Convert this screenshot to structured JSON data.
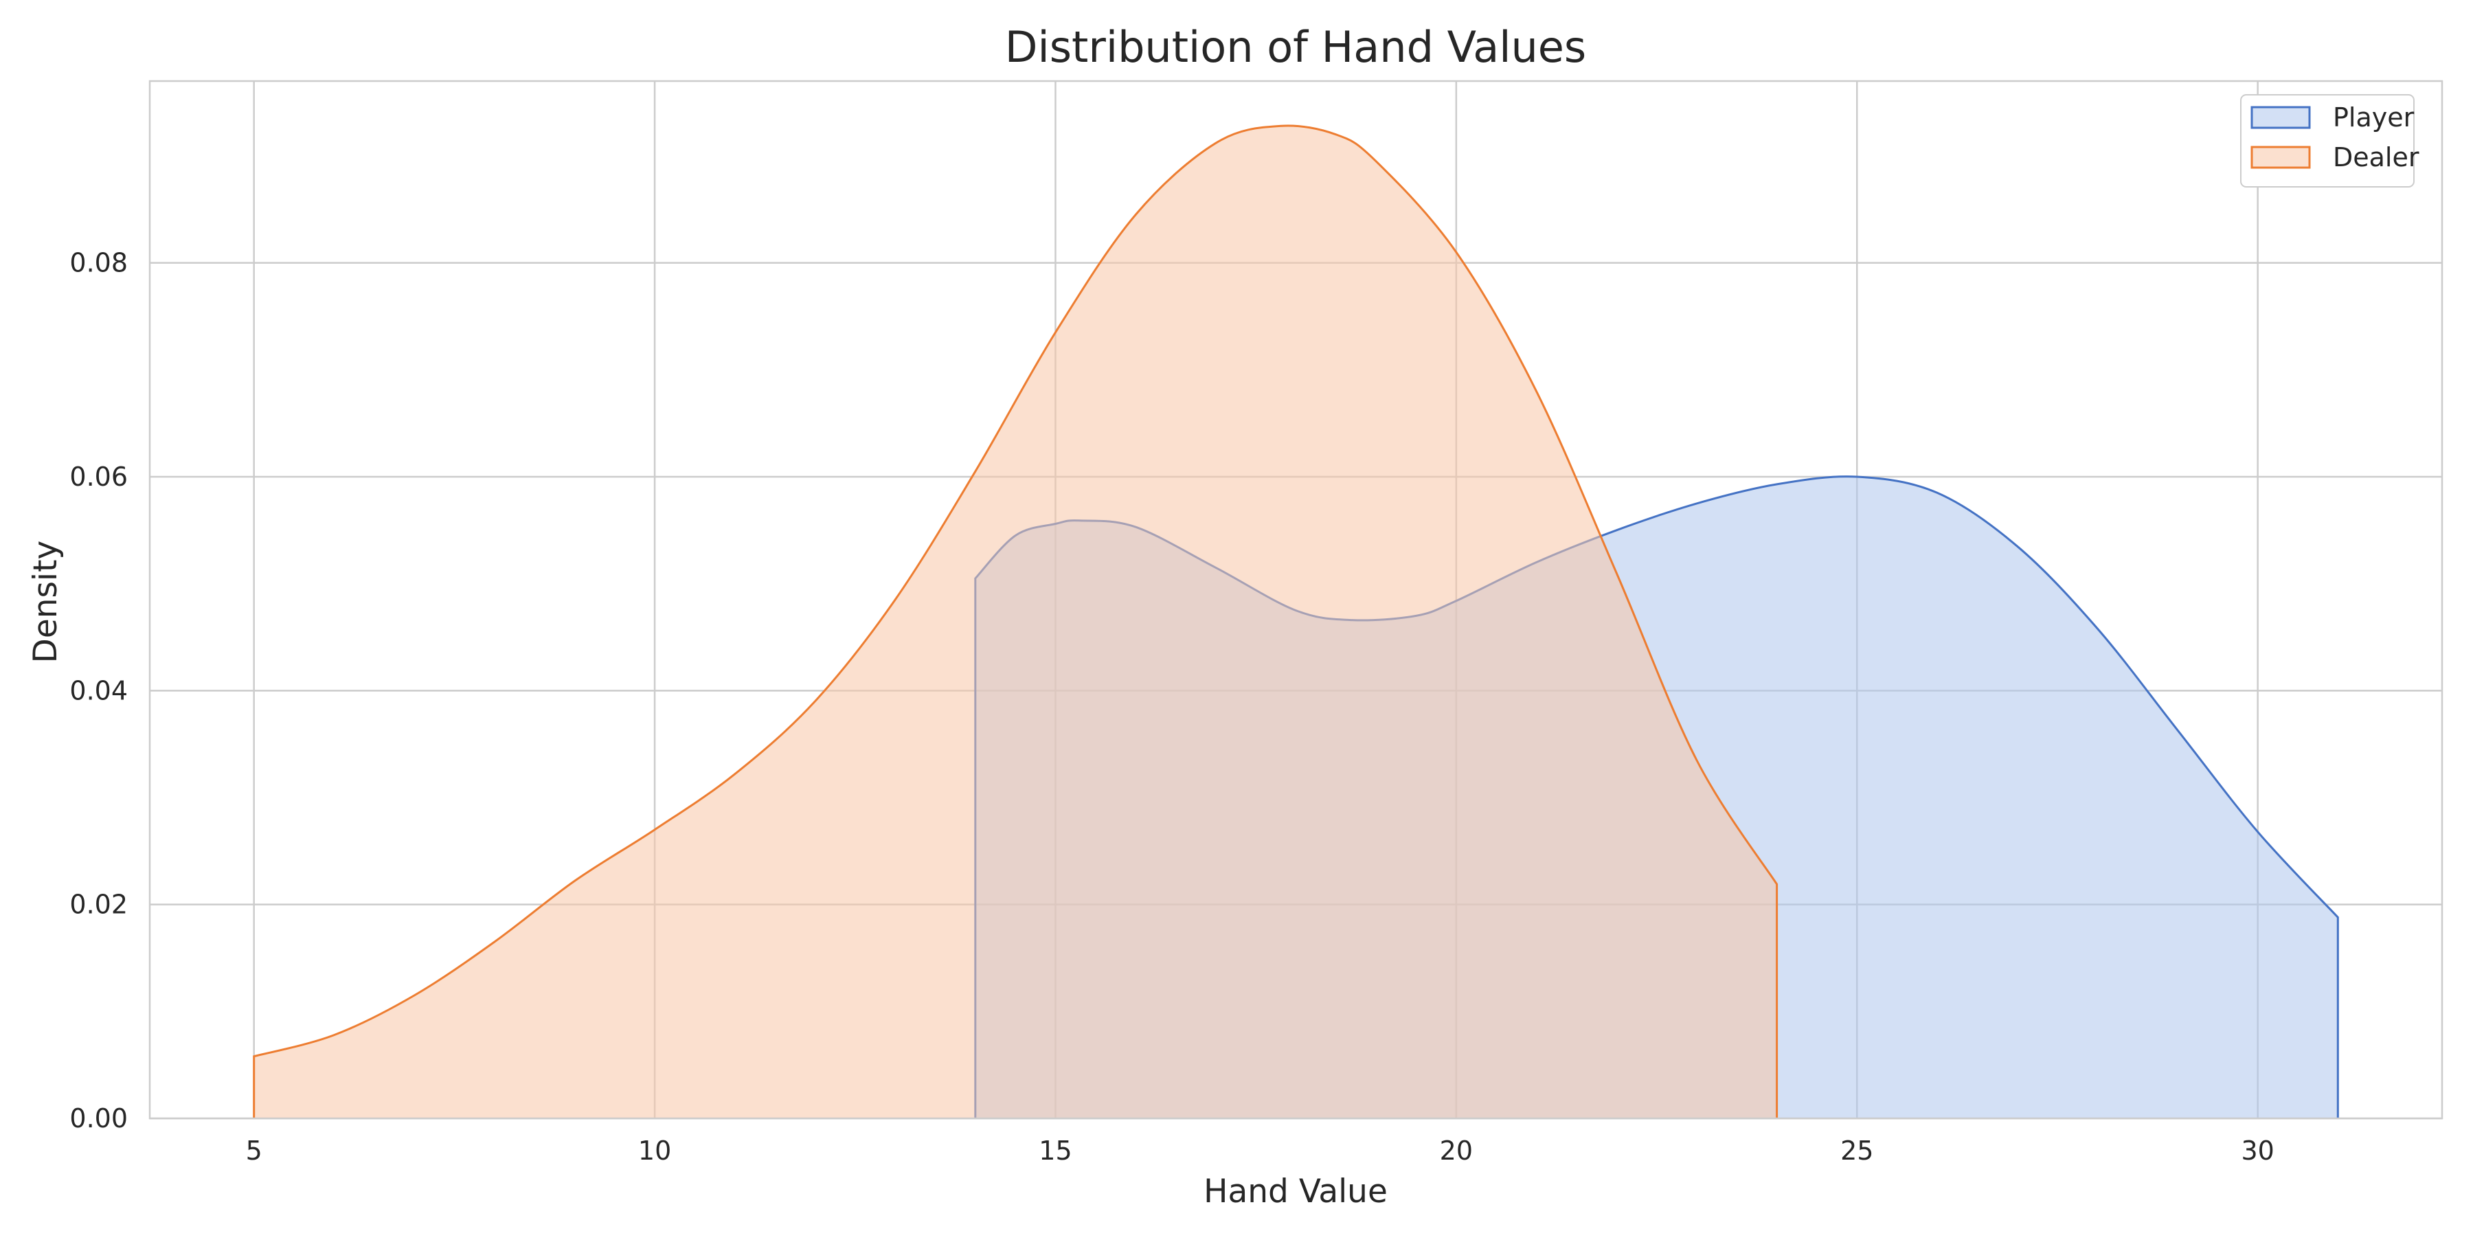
{
  "chart_data": {
    "type": "area",
    "title": "Distribution of Hand Values",
    "xlabel": "Hand Value",
    "ylabel": "Density",
    "xlim": [
      3.7,
      32.3
    ],
    "ylim": [
      0,
      0.097
    ],
    "xticks": [
      5,
      10,
      15,
      20,
      25,
      30
    ],
    "yticks": [
      0.0,
      0.02,
      0.04,
      0.06,
      0.08
    ],
    "xtick_labels": [
      "5",
      "10",
      "15",
      "20",
      "25",
      "30"
    ],
    "ytick_labels": [
      "0.00",
      "0.02",
      "0.04",
      "0.06",
      "0.08"
    ],
    "grid": true,
    "legend_position": "top-right",
    "series": [
      {
        "name": "Player",
        "color": "#4472c4",
        "fill": "#aec6ec",
        "x": [
          14,
          14.5,
          15,
          15.3,
          16,
          17,
          18,
          18.7,
          19.5,
          20,
          21,
          22,
          23,
          24,
          25,
          26,
          27,
          28,
          29,
          30,
          31
        ],
        "y": [
          0.0505,
          0.0545,
          0.0556,
          0.0559,
          0.0553,
          0.0515,
          0.0475,
          0.0466,
          0.047,
          0.0484,
          0.052,
          0.055,
          0.0575,
          0.0593,
          0.06,
          0.0585,
          0.0535,
          0.0458,
          0.0363,
          0.0268,
          0.0188
        ]
      },
      {
        "name": "Dealer",
        "color": "#ed7d31",
        "fill": "#f7c6a8",
        "x": [
          5,
          6,
          7,
          8,
          9,
          10,
          11,
          12,
          13,
          14,
          15,
          16,
          17,
          17.8,
          18.5,
          19,
          20,
          21,
          22,
          23,
          24
        ],
        "y": [
          0.0058,
          0.0078,
          0.0115,
          0.0165,
          0.0222,
          0.027,
          0.0322,
          0.039,
          0.0485,
          0.0605,
          0.0735,
          0.0845,
          0.0912,
          0.0928,
          0.092,
          0.0895,
          0.081,
          0.068,
          0.051,
          0.0335,
          0.0219
        ]
      }
    ]
  }
}
